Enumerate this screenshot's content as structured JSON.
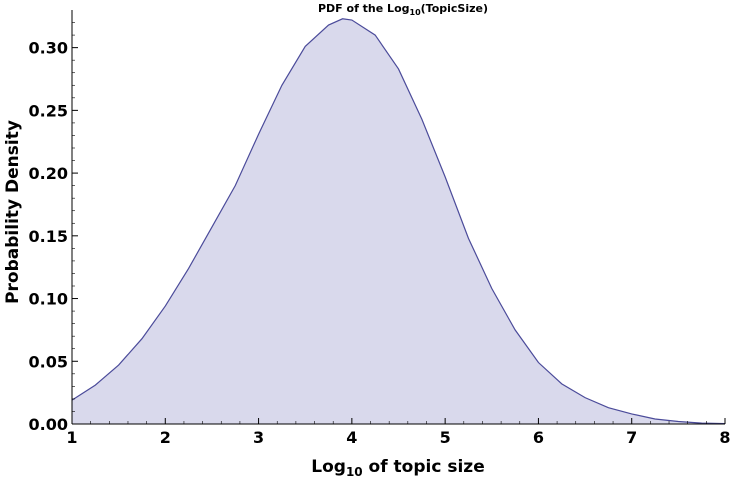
{
  "chart_data": {
    "type": "area",
    "title_prefix": "PDF of the Log",
    "title_sub": "10",
    "title_suffix": "(TopicSize)",
    "xlabel_prefix": "Log",
    "xlabel_sub": "10",
    "xlabel_suffix": " of topic size",
    "ylabel": "Probability Density",
    "xlim": [
      1,
      8
    ],
    "ylim": [
      0,
      0.33
    ],
    "x_ticks": [
      1,
      2,
      3,
      4,
      5,
      6,
      7,
      8
    ],
    "x_tick_labels": [
      "1",
      "2",
      "3",
      "4",
      "5",
      "6",
      "7",
      "8"
    ],
    "y_ticks": [
      0,
      0.05,
      0.1,
      0.15,
      0.2,
      0.25,
      0.3
    ],
    "y_tick_labels": [
      "0.00",
      "0.05",
      "0.10",
      "0.15",
      "0.20",
      "0.25",
      "0.30"
    ],
    "grid": false,
    "legend": "none",
    "fill_color": "#d9d9ec",
    "line_color": "#4b4b9a",
    "series": [
      {
        "x": [
          1.0,
          1.25,
          1.5,
          1.75,
          2.0,
          2.25,
          2.5,
          2.75,
          3.0,
          3.25,
          3.5,
          3.75,
          3.9,
          4.0,
          4.25,
          4.5,
          4.75,
          5.0,
          5.25,
          5.5,
          5.75,
          6.0,
          6.25,
          6.5,
          6.75,
          7.0,
          7.25,
          7.5,
          7.75,
          8.0
        ],
        "values": [
          0.019,
          0.031,
          0.047,
          0.068,
          0.094,
          0.124,
          0.157,
          0.19,
          0.231,
          0.27,
          0.301,
          0.318,
          0.323,
          0.322,
          0.31,
          0.283,
          0.243,
          0.197,
          0.148,
          0.108,
          0.075,
          0.049,
          0.032,
          0.021,
          0.013,
          0.008,
          0.004,
          0.002,
          0.0007,
          0.0003
        ]
      }
    ]
  }
}
